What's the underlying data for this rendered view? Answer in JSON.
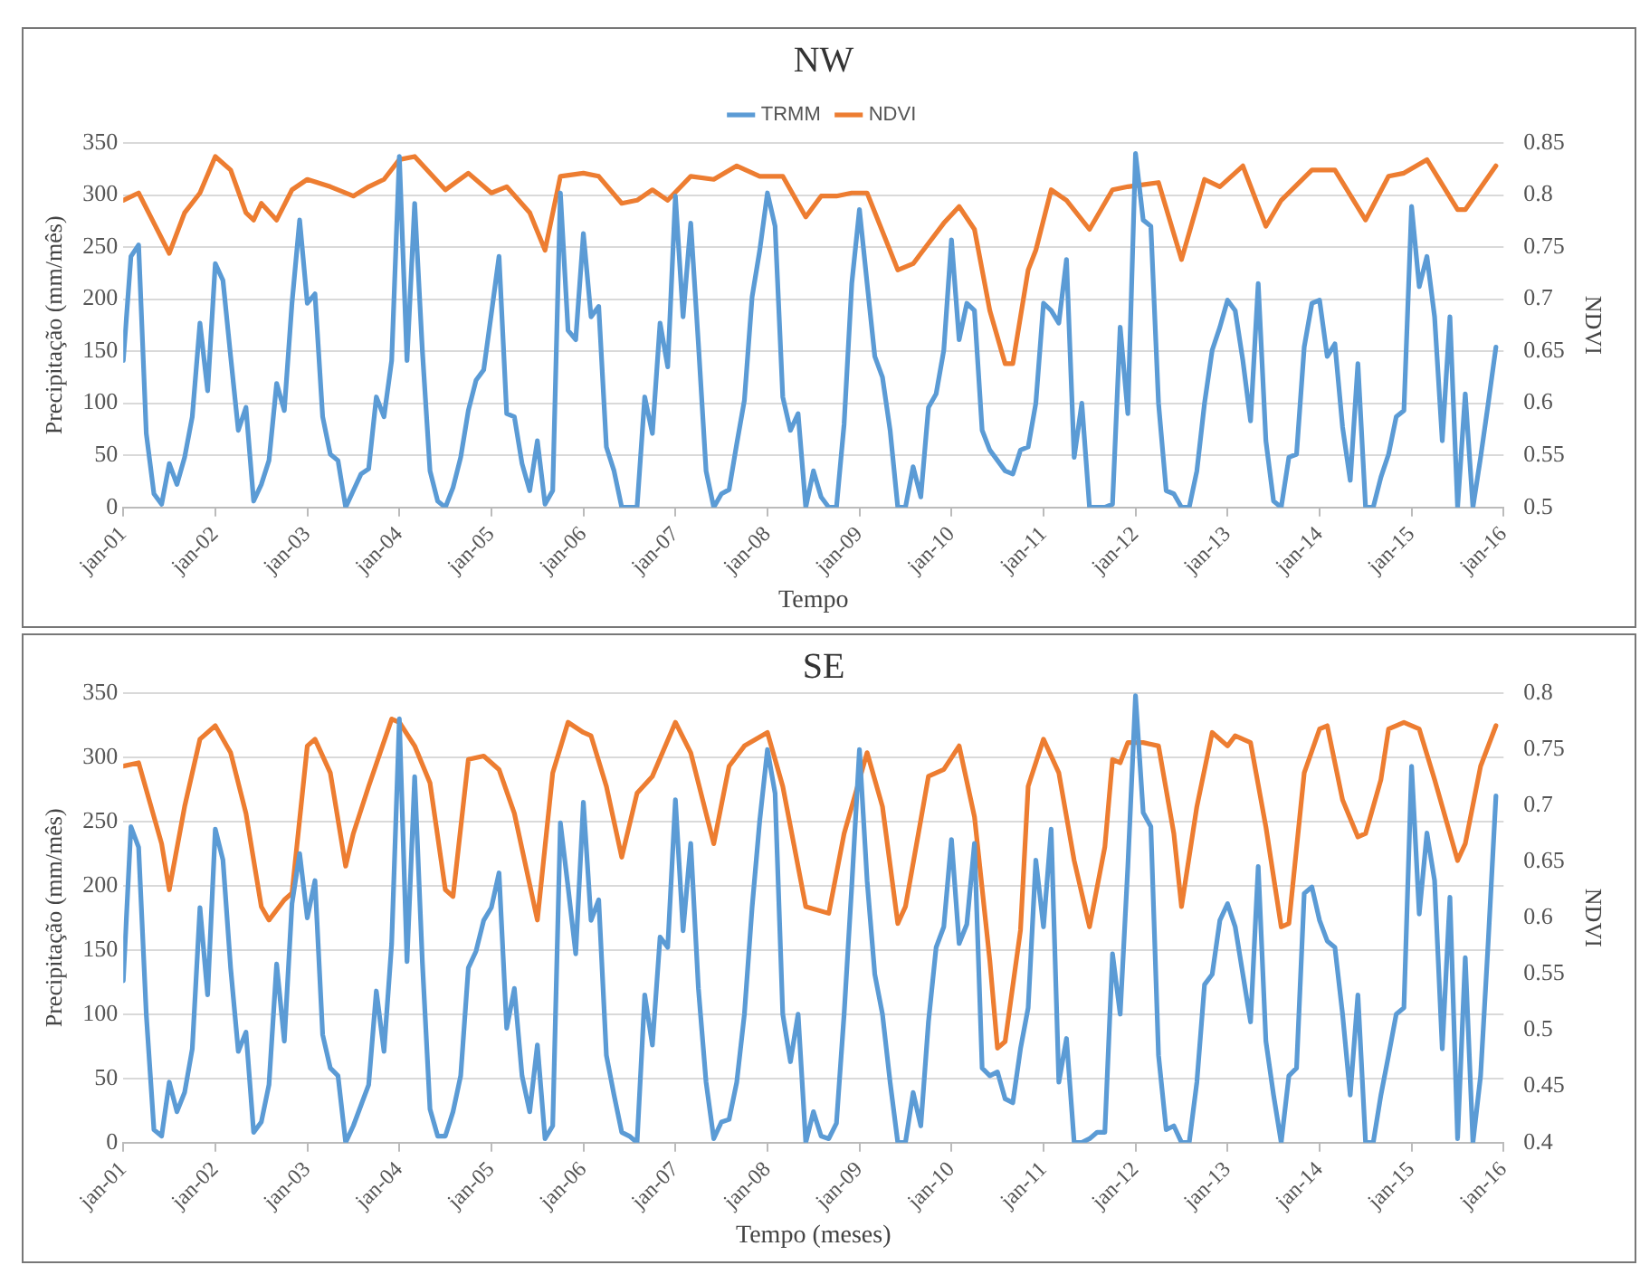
{
  "chart_data": [
    {
      "type": "line",
      "title": "NW",
      "xlabel": "Tempo",
      "ylabel": "Precipitação (mm/mês)",
      "y2label": "NDVI",
      "x": [
        "2001-01",
        "2001-02",
        "2001-03",
        "2001-04",
        "2001-05",
        "2001-06",
        "2001-07",
        "2001-08",
        "2001-09",
        "2001-10",
        "2001-11",
        "2001-12",
        "2002-01",
        "2002-02",
        "2002-03",
        "2002-04",
        "2002-05",
        "2002-06",
        "2002-07",
        "2002-08",
        "2002-09",
        "2002-10",
        "2002-11",
        "2002-12",
        "2003-01",
        "2003-02",
        "2003-03",
        "2003-04",
        "2003-05",
        "2003-06",
        "2003-07",
        "2003-08",
        "2003-09",
        "2003-10",
        "2003-11",
        "2003-12",
        "2004-01",
        "2004-02",
        "2004-03",
        "2004-04",
        "2004-05",
        "2004-06",
        "2004-07",
        "2004-08",
        "2004-09",
        "2004-10",
        "2004-11",
        "2004-12",
        "2005-01",
        "2005-02",
        "2005-03",
        "2005-04",
        "2005-05",
        "2005-06",
        "2005-07",
        "2005-08",
        "2005-09",
        "2005-10",
        "2005-11",
        "2005-12",
        "2006-01",
        "2006-02",
        "2006-03",
        "2006-04",
        "2006-05",
        "2006-06",
        "2006-07",
        "2006-08",
        "2006-09",
        "2006-10",
        "2006-11",
        "2006-12",
        "2007-01",
        "2007-02",
        "2007-03",
        "2007-04",
        "2007-05",
        "2007-06",
        "2007-07",
        "2007-08",
        "2007-09",
        "2007-10",
        "2007-11",
        "2007-12",
        "2008-01",
        "2008-02",
        "2008-03",
        "2008-04",
        "2008-05",
        "2008-06",
        "2008-07",
        "2008-08",
        "2008-09",
        "2008-10",
        "2008-11",
        "2008-12",
        "2009-01",
        "2009-02",
        "2009-03",
        "2009-04",
        "2009-05",
        "2009-06",
        "2009-07",
        "2009-08",
        "2009-09",
        "2009-10",
        "2009-11",
        "2009-12",
        "2010-01",
        "2010-02",
        "2010-03",
        "2010-04",
        "2010-05",
        "2010-06",
        "2010-07",
        "2010-08",
        "2010-09",
        "2010-10",
        "2010-11",
        "2010-12",
        "2011-01",
        "2011-02",
        "2011-03",
        "2011-04",
        "2011-05",
        "2011-06",
        "2011-07",
        "2011-08",
        "2011-09",
        "2011-10",
        "2011-11",
        "2011-12",
        "2012-01",
        "2012-02",
        "2012-03",
        "2012-04",
        "2012-05",
        "2012-06",
        "2012-07",
        "2012-08",
        "2012-09",
        "2012-10",
        "2012-11",
        "2012-12",
        "2013-01",
        "2013-02",
        "2013-03",
        "2013-04",
        "2013-05",
        "2013-06",
        "2013-07",
        "2013-08",
        "2013-09",
        "2013-10",
        "2013-11",
        "2013-12",
        "2014-01",
        "2014-02",
        "2014-03",
        "2014-04",
        "2014-05",
        "2014-06",
        "2014-07",
        "2014-08",
        "2014-09",
        "2014-10",
        "2014-11",
        "2014-12",
        "2015-01",
        "2015-02",
        "2015-03",
        "2015-04",
        "2015-05",
        "2015-06",
        "2015-07",
        "2015-08",
        "2015-09",
        "2015-10",
        "2015-11",
        "2015-12"
      ],
      "series": [
        {
          "name": "TRMM",
          "color": "#5b9bd5",
          "values": [
            141,
            241,
            252,
            71,
            13,
            3,
            42,
            22,
            48,
            87,
            177,
            112,
            234,
            218,
            145,
            74,
            96,
            6,
            22,
            45,
            119,
            93,
            196,
            276,
            196,
            205,
            87,
            51,
            45,
            0,
            16,
            32,
            37,
            106,
            87,
            141,
            337,
            141,
            292,
            151,
            35,
            6,
            0,
            19,
            48,
            93,
            122,
            132,
            186,
            241,
            90,
            87,
            42,
            16,
            64,
            3,
            16,
            302,
            170,
            161,
            263,
            183,
            193,
            58,
            35,
            0,
            0,
            0,
            106,
            71,
            177,
            135,
            299,
            183,
            273,
            157,
            35,
            0,
            13,
            17,
            61,
            103,
            202,
            247,
            302,
            270,
            106,
            74,
            90,
            0,
            35,
            10,
            0,
            0,
            80,
            215,
            286,
            215,
            145,
            125,
            74,
            0,
            0,
            39,
            10,
            96,
            109,
            151,
            257,
            161,
            196,
            189,
            74,
            55,
            45,
            35,
            32,
            55,
            58,
            100,
            196,
            189,
            177,
            238,
            48,
            100,
            0,
            0,
            0,
            3,
            173,
            90,
            340,
            276,
            270,
            100,
            16,
            13,
            0,
            0,
            35,
            100,
            151,
            173,
            199,
            189,
            141,
            83,
            215,
            64,
            6,
            0,
            48,
            51,
            154,
            196,
            199,
            145,
            157,
            77,
            26,
            138,
            0,
            0,
            29,
            51,
            87,
            93,
            289,
            212,
            241,
            183,
            64,
            183,
            0,
            109,
            0,
            48,
            100,
            154
          ]
        },
        {
          "name": "NDVI",
          "color": "#ed7d31",
          "axis": "y2",
          "x": [
            "2001-01",
            "2001-03",
            "2001-05",
            "2001-07",
            "2001-09",
            "2001-11",
            "2002-01",
            "2002-03",
            "2002-05",
            "2002-06",
            "2002-07",
            "2002-09",
            "2002-11",
            "2003-01",
            "2003-04",
            "2003-07",
            "2003-09",
            "2003-11",
            "2004-01",
            "2004-03",
            "2004-07",
            "2004-10",
            "2005-01",
            "2005-03",
            "2005-06",
            "2005-08",
            "2005-10",
            "2006-01",
            "2006-03",
            "2006-06",
            "2006-08",
            "2006-10",
            "2006-12",
            "2007-03",
            "2007-06",
            "2007-09",
            "2007-12",
            "2008-03",
            "2008-06",
            "2008-08",
            "2008-10",
            "2008-12",
            "2009-02",
            "2009-06",
            "2009-08",
            "2009-12",
            "2010-02",
            "2010-04",
            "2010-06",
            "2010-08",
            "2010-09",
            "2010-11",
            "2010-12",
            "2011-02",
            "2011-04",
            "2011-07",
            "2011-10",
            "2011-12",
            "2012-04",
            "2012-07",
            "2012-10",
            "2012-12",
            "2013-03",
            "2013-06",
            "2013-08",
            "2013-12",
            "2014-03",
            "2014-07",
            "2014-10",
            "2014-12",
            "2015-03",
            "2015-07",
            "2015-08",
            "2015-12"
          ],
          "values": [
            0.795,
            0.802,
            0.773,
            0.744,
            0.783,
            0.802,
            0.837,
            0.824,
            0.783,
            0.776,
            0.792,
            0.776,
            0.805,
            0.815,
            0.808,
            0.799,
            0.808,
            0.815,
            0.834,
            0.837,
            0.805,
            0.821,
            0.802,
            0.808,
            0.783,
            0.747,
            0.818,
            0.821,
            0.818,
            0.792,
            0.795,
            0.805,
            0.795,
            0.818,
            0.815,
            0.828,
            0.818,
            0.818,
            0.779,
            0.799,
            0.799,
            0.802,
            0.802,
            0.728,
            0.734,
            0.773,
            0.789,
            0.767,
            0.689,
            0.638,
            0.638,
            0.728,
            0.747,
            0.805,
            0.795,
            0.767,
            0.805,
            0.808,
            0.812,
            0.738,
            0.815,
            0.808,
            0.828,
            0.77,
            0.795,
            0.824,
            0.824,
            0.776,
            0.818,
            0.821,
            0.834,
            0.786,
            0.786,
            0.828
          ]
        }
      ],
      "xlim": [
        "2001-01",
        "2016-01"
      ],
      "xticks": [
        {
          "value": "2001-01",
          "label": "jan-01"
        },
        {
          "value": "2002-01",
          "label": "jan-02"
        },
        {
          "value": "2003-01",
          "label": "jan-03"
        },
        {
          "value": "2004-01",
          "label": "jan-04"
        },
        {
          "value": "2005-01",
          "label": "jan-05"
        },
        {
          "value": "2006-01",
          "label": "jan-06"
        },
        {
          "value": "2007-01",
          "label": "jan-07"
        },
        {
          "value": "2008-01",
          "label": "jan-08"
        },
        {
          "value": "2009-01",
          "label": "jan-09"
        },
        {
          "value": "2010-01",
          "label": "jan-10"
        },
        {
          "value": "2011-01",
          "label": "jan-11"
        },
        {
          "value": "2012-01",
          "label": "jan-12"
        },
        {
          "value": "2013-01",
          "label": "jan-13"
        },
        {
          "value": "2014-01",
          "label": "jan-14"
        },
        {
          "value": "2015-01",
          "label": "jan-15"
        },
        {
          "value": "2016-01",
          "label": "jan-16"
        }
      ],
      "ylim": [
        0,
        350
      ],
      "yticks": [
        0,
        50,
        100,
        150,
        200,
        250,
        300,
        350
      ],
      "y2lim": [
        0.5,
        0.85
      ],
      "y2ticks": [
        0.5,
        0.55,
        0.6,
        0.65,
        0.7,
        0.75,
        0.8,
        0.85
      ],
      "grid": "y",
      "legend": "top",
      "marker": "none",
      "line_style": "solid"
    },
    {
      "type": "line",
      "title": "SE",
      "xlabel": "Tempo (meses)",
      "ylabel": "Precipitação (mm/mês)",
      "y2label": "NDVI",
      "x": [
        "2001-01",
        "2001-02",
        "2001-03",
        "2001-04",
        "2001-05",
        "2001-06",
        "2001-07",
        "2001-08",
        "2001-09",
        "2001-10",
        "2001-11",
        "2001-12",
        "2002-01",
        "2002-02",
        "2002-03",
        "2002-04",
        "2002-05",
        "2002-06",
        "2002-07",
        "2002-08",
        "2002-09",
        "2002-10",
        "2002-11",
        "2002-12",
        "2003-01",
        "2003-02",
        "2003-03",
        "2003-04",
        "2003-05",
        "2003-06",
        "2003-07",
        "2003-08",
        "2003-09",
        "2003-10",
        "2003-11",
        "2003-12",
        "2004-01",
        "2004-02",
        "2004-03",
        "2004-04",
        "2004-05",
        "2004-06",
        "2004-07",
        "2004-08",
        "2004-09",
        "2004-10",
        "2004-11",
        "2004-12",
        "2005-01",
        "2005-02",
        "2005-03",
        "2005-04",
        "2005-05",
        "2005-06",
        "2005-07",
        "2005-08",
        "2005-09",
        "2005-10",
        "2005-11",
        "2005-12",
        "2006-01",
        "2006-02",
        "2006-03",
        "2006-04",
        "2006-05",
        "2006-06",
        "2006-07",
        "2006-08",
        "2006-09",
        "2006-10",
        "2006-11",
        "2006-12",
        "2007-01",
        "2007-02",
        "2007-03",
        "2007-04",
        "2007-05",
        "2007-06",
        "2007-07",
        "2007-08",
        "2007-09",
        "2007-10",
        "2007-11",
        "2007-12",
        "2008-01",
        "2008-02",
        "2008-03",
        "2008-04",
        "2008-05",
        "2008-06",
        "2008-07",
        "2008-08",
        "2008-09",
        "2008-10",
        "2008-11",
        "2008-12",
        "2009-01",
        "2009-02",
        "2009-03",
        "2009-04",
        "2009-05",
        "2009-06",
        "2009-07",
        "2009-08",
        "2009-09",
        "2009-10",
        "2009-11",
        "2009-12",
        "2010-01",
        "2010-02",
        "2010-03",
        "2010-04",
        "2010-05",
        "2010-06",
        "2010-07",
        "2010-08",
        "2010-09",
        "2010-10",
        "2010-11",
        "2010-12",
        "2011-01",
        "2011-02",
        "2011-03",
        "2011-04",
        "2011-05",
        "2011-06",
        "2011-07",
        "2011-08",
        "2011-09",
        "2011-10",
        "2011-11",
        "2011-12",
        "2012-01",
        "2012-02",
        "2012-03",
        "2012-04",
        "2012-05",
        "2012-06",
        "2012-07",
        "2012-08",
        "2012-09",
        "2012-10",
        "2012-11",
        "2012-12",
        "2013-01",
        "2013-02",
        "2013-03",
        "2013-04",
        "2013-05",
        "2013-06",
        "2013-07",
        "2013-08",
        "2013-09",
        "2013-10",
        "2013-11",
        "2013-12",
        "2014-01",
        "2014-02",
        "2014-03",
        "2014-04",
        "2014-05",
        "2014-06",
        "2014-07",
        "2014-08",
        "2014-09",
        "2014-10",
        "2014-11",
        "2014-12",
        "2015-01",
        "2015-02",
        "2015-03",
        "2015-04",
        "2015-05",
        "2015-06",
        "2015-07",
        "2015-08",
        "2015-09",
        "2015-10",
        "2015-11",
        "2015-12"
      ],
      "series": [
        {
          "color": "#5b9bd5",
          "values": [
            126,
            246,
            230,
            100,
            10,
            5,
            47,
            24,
            39,
            73,
            183,
            115,
            244,
            220,
            136,
            71,
            86,
            8,
            16,
            45,
            139,
            79,
            186,
            225,
            175,
            204,
            84,
            58,
            52,
            0,
            13,
            29,
            45,
            118,
            71,
            155,
            330,
            141,
            285,
            141,
            26,
            5,
            5,
            24,
            52,
            136,
            149,
            173,
            183,
            210,
            89,
            120,
            52,
            24,
            76,
            3,
            13,
            249,
            199,
            147,
            265,
            173,
            189,
            68,
            37,
            8,
            5,
            0,
            115,
            76,
            160,
            152,
            267,
            165,
            233,
            120,
            47,
            3,
            16,
            18,
            47,
            100,
            183,
            251,
            306,
            272,
            100,
            63,
            100,
            0,
            24,
            5,
            3,
            15,
            100,
            200,
            306,
            204,
            131,
            100,
            47,
            0,
            0,
            39,
            13,
            94,
            152,
            168,
            236,
            155,
            170,
            233,
            58,
            52,
            55,
            34,
            31,
            73,
            105,
            220,
            168,
            244,
            47,
            81,
            0,
            0,
            3,
            8,
            8,
            147,
            100,
            215,
            348,
            257,
            246,
            68,
            10,
            13,
            0,
            0,
            47,
            123,
            131,
            173,
            186,
            168,
            131,
            94,
            215,
            79,
            37,
            0,
            52,
            58,
            194,
            199,
            173,
            157,
            152,
            100,
            37,
            115,
            0,
            0,
            37,
            68,
            100,
            105,
            293,
            178,
            241,
            204,
            73,
            191,
            3,
            144,
            0,
            52,
            157,
            270
          ]
        },
        {
          "color": "#ed7d31",
          "axis": "y2",
          "x": [
            "2001-01",
            "2001-03",
            "2001-06",
            "2001-07",
            "2001-09",
            "2001-11",
            "2002-01",
            "2002-03",
            "2002-05",
            "2002-07",
            "2002-08",
            "2002-10",
            "2002-11",
            "2003-01",
            "2003-02",
            "2003-04",
            "2003-06",
            "2003-07",
            "2003-09",
            "2003-12",
            "2004-01",
            "2004-03",
            "2004-05",
            "2004-07",
            "2004-08",
            "2004-10",
            "2004-12",
            "2005-02",
            "2005-04",
            "2005-07",
            "2005-09",
            "2005-11",
            "2006-01",
            "2006-02",
            "2006-04",
            "2006-06",
            "2006-08",
            "2006-10",
            "2007-01",
            "2007-03",
            "2007-05",
            "2007-06",
            "2007-08",
            "2007-10",
            "2008-01",
            "2008-03",
            "2008-06",
            "2008-09",
            "2008-11",
            "2009-01",
            "2009-02",
            "2009-04",
            "2009-06",
            "2009-07",
            "2009-09",
            "2009-10",
            "2009-12",
            "2010-02",
            "2010-04",
            "2010-06",
            "2010-07",
            "2010-08",
            "2010-10",
            "2010-11",
            "2011-01",
            "2011-03",
            "2011-05",
            "2011-07",
            "2011-09",
            "2011-10",
            "2011-11",
            "2011-12",
            "2012-02",
            "2012-04",
            "2012-06",
            "2012-07",
            "2012-09",
            "2012-11",
            "2013-01",
            "2013-02",
            "2013-04",
            "2013-06",
            "2013-08",
            "2013-09",
            "2013-11",
            "2014-01",
            "2014-02",
            "2014-04",
            "2014-06",
            "2014-07",
            "2014-09",
            "2014-10",
            "2014-12",
            "2015-02",
            "2015-04",
            "2015-07",
            "2015-08",
            "2015-10",
            "2015-12"
          ],
          "values": [
            0.735,
            0.738,
            0.666,
            0.625,
            0.699,
            0.759,
            0.771,
            0.747,
            0.693,
            0.61,
            0.598,
            0.616,
            0.622,
            0.753,
            0.759,
            0.729,
            0.646,
            0.675,
            0.717,
            0.777,
            0.774,
            0.753,
            0.72,
            0.625,
            0.619,
            0.741,
            0.744,
            0.732,
            0.693,
            0.598,
            0.729,
            0.774,
            0.765,
            0.762,
            0.717,
            0.654,
            0.711,
            0.726,
            0.774,
            0.747,
            0.693,
            0.666,
            0.735,
            0.753,
            0.765,
            0.717,
            0.61,
            0.604,
            0.675,
            0.723,
            0.747,
            0.699,
            0.595,
            0.61,
            0.687,
            0.726,
            0.732,
            0.753,
            0.69,
            0.562,
            0.484,
            0.49,
            0.589,
            0.717,
            0.759,
            0.729,
            0.651,
            0.592,
            0.663,
            0.741,
            0.738,
            0.756,
            0.756,
            0.753,
            0.675,
            0.61,
            0.699,
            0.765,
            0.753,
            0.762,
            0.756,
            0.681,
            0.592,
            0.595,
            0.729,
            0.768,
            0.771,
            0.705,
            0.672,
            0.675,
            0.723,
            0.768,
            0.774,
            0.768,
            0.723,
            0.651,
            0.666,
            0.735,
            0.771
          ]
        }
      ],
      "xlim": [
        "2001-01",
        "2016-01"
      ],
      "xticks": [
        {
          "value": "2001-01",
          "label": "jan-01"
        },
        {
          "value": "2002-01",
          "label": "jan-02"
        },
        {
          "value": "2003-01",
          "label": "jan-03"
        },
        {
          "value": "2004-01",
          "label": "jan-04"
        },
        {
          "value": "2005-01",
          "label": "jan-05"
        },
        {
          "value": "2006-01",
          "label": "jan-06"
        },
        {
          "value": "2007-01",
          "label": "jan-07"
        },
        {
          "value": "2008-01",
          "label": "jan-08"
        },
        {
          "value": "2009-01",
          "label": "jan-09"
        },
        {
          "value": "2010-01",
          "label": "jan-10"
        },
        {
          "value": "2011-01",
          "label": "jan-11"
        },
        {
          "value": "2012-01",
          "label": "jan-12"
        },
        {
          "value": "2013-01",
          "label": "jan-13"
        },
        {
          "value": "2014-01",
          "label": "jan-14"
        },
        {
          "value": "2015-01",
          "label": "jan-15"
        },
        {
          "value": "2016-01",
          "label": "jan-16"
        }
      ],
      "ylim": [
        0,
        350
      ],
      "yticks": [
        0,
        50,
        100,
        150,
        200,
        250,
        300,
        350
      ],
      "y2lim": [
        0.4,
        0.8
      ],
      "y2ticks": [
        0.4,
        0.45,
        0.5,
        0.55,
        0.6,
        0.65,
        0.7,
        0.75,
        0.8
      ],
      "grid": "y",
      "marker": "none",
      "line_style": "solid"
    }
  ]
}
